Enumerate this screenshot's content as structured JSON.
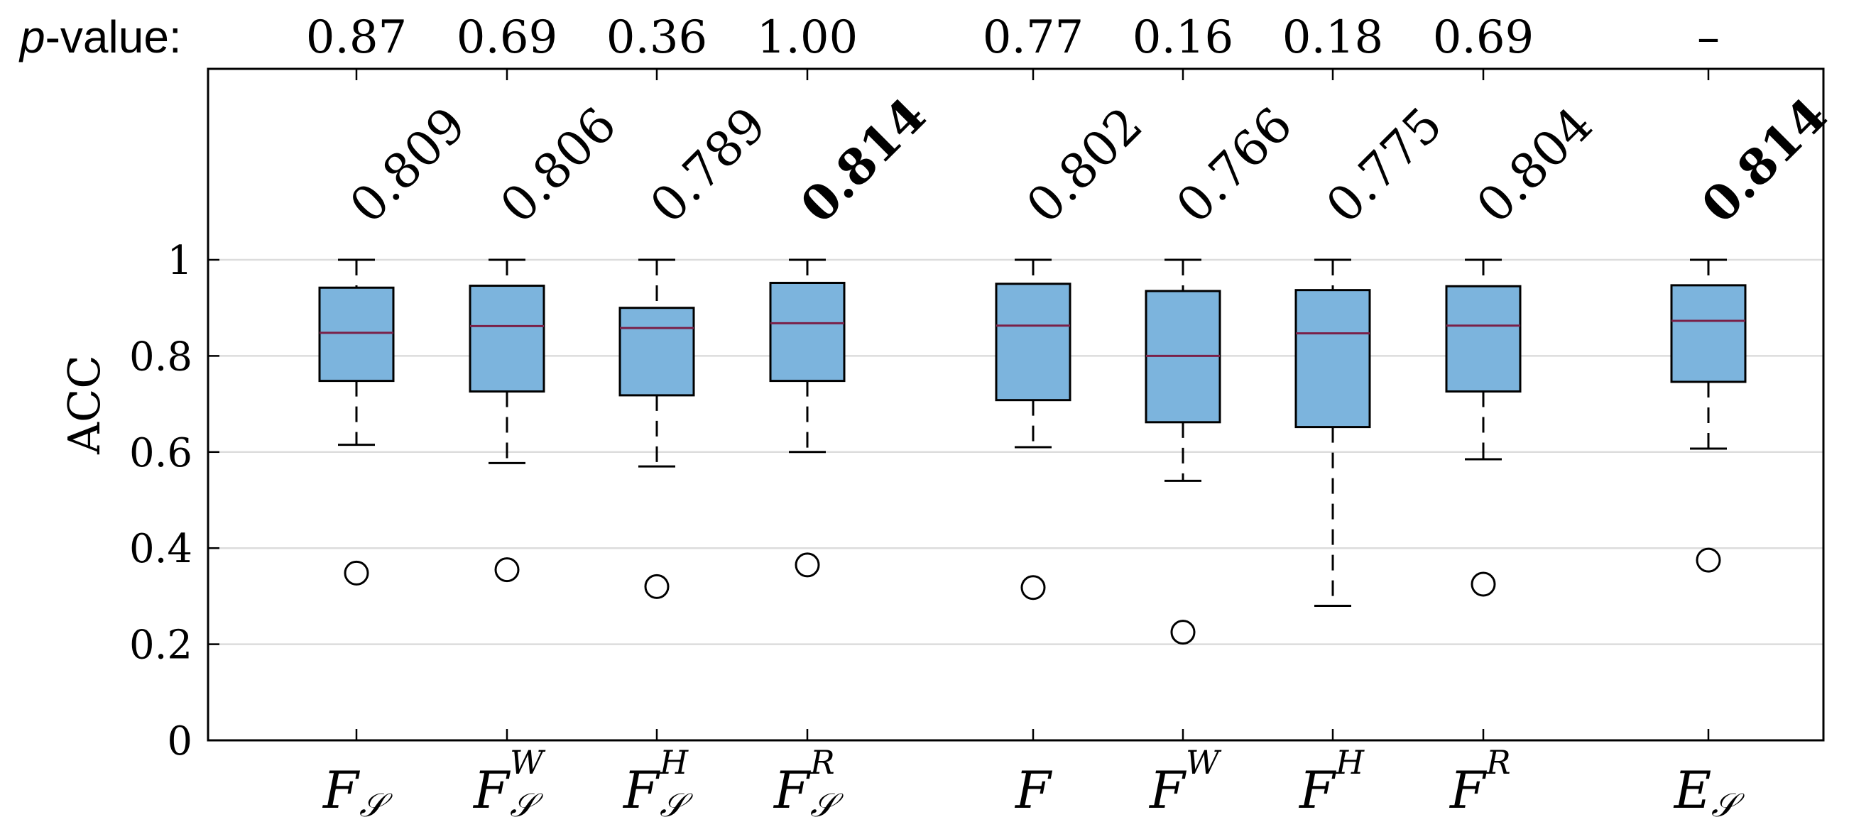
{
  "chart_data": {
    "type": "box",
    "ylabel": "ACC",
    "ylim": [
      0,
      1
    ],
    "yticks": [
      0,
      0.2,
      0.4,
      0.6,
      0.8,
      1
    ],
    "ytick_labels": [
      "0",
      "0.2",
      "0.4",
      "0.6",
      "0.8",
      "1"
    ],
    "grid": "horizontal",
    "pvalue_label": "p-value:",
    "pvalue_label_parts": {
      "italic": "p",
      "rest": "-value:"
    },
    "categories": [
      {
        "id": "FS",
        "base": "F",
        "sub": "𝒮",
        "sup": "",
        "accuracy": "0.809",
        "bold": false,
        "pvalue": "0.87",
        "box": {
          "whisker_low": 0.615,
          "q1": 0.748,
          "median": 0.848,
          "q3": 0.942,
          "whisker_high": 1.0
        },
        "outliers": [
          0.348
        ]
      },
      {
        "id": "FSW",
        "base": "F",
        "sub": "𝒮",
        "sup": "W",
        "accuracy": "0.806",
        "bold": false,
        "pvalue": "0.69",
        "box": {
          "whisker_low": 0.577,
          "q1": 0.726,
          "median": 0.862,
          "q3": 0.946,
          "whisker_high": 1.0
        },
        "outliers": [
          0.355
        ]
      },
      {
        "id": "FSH",
        "base": "F",
        "sub": "𝒮",
        "sup": "H",
        "accuracy": "0.789",
        "bold": false,
        "pvalue": "0.36",
        "box": {
          "whisker_low": 0.57,
          "q1": 0.718,
          "median": 0.858,
          "q3": 0.9,
          "whisker_high": 1.0
        },
        "outliers": [
          0.32
        ]
      },
      {
        "id": "FSR",
        "base": "F",
        "sub": "𝒮",
        "sup": "R",
        "accuracy": "0.814",
        "bold": true,
        "pvalue": "1.00",
        "box": {
          "whisker_low": 0.6,
          "q1": 0.748,
          "median": 0.868,
          "q3": 0.952,
          "whisker_high": 1.0
        },
        "outliers": [
          0.365
        ]
      },
      {
        "id": "F",
        "base": "F",
        "sub": "",
        "sup": "",
        "accuracy": "0.802",
        "bold": false,
        "pvalue": "0.77",
        "box": {
          "whisker_low": 0.61,
          "q1": 0.708,
          "median": 0.863,
          "q3": 0.95,
          "whisker_high": 1.0
        },
        "outliers": [
          0.318
        ]
      },
      {
        "id": "FW",
        "base": "F",
        "sub": "",
        "sup": "W",
        "accuracy": "0.766",
        "bold": false,
        "pvalue": "0.16",
        "box": {
          "whisker_low": 0.54,
          "q1": 0.662,
          "median": 0.8,
          "q3": 0.935,
          "whisker_high": 1.0
        },
        "outliers": [
          0.225
        ]
      },
      {
        "id": "FH",
        "base": "F",
        "sub": "",
        "sup": "H",
        "accuracy": "0.775",
        "bold": false,
        "pvalue": "0.18",
        "box": {
          "whisker_low": 0.28,
          "q1": 0.652,
          "median": 0.847,
          "q3": 0.937,
          "whisker_high": 1.0
        },
        "outliers": []
      },
      {
        "id": "FR",
        "base": "F",
        "sub": "",
        "sup": "R",
        "accuracy": "0.804",
        "bold": false,
        "pvalue": "0.69",
        "box": {
          "whisker_low": 0.585,
          "q1": 0.726,
          "median": 0.863,
          "q3": 0.945,
          "whisker_high": 1.0
        },
        "outliers": [
          0.325
        ]
      },
      {
        "id": "ES",
        "base": "E",
        "sub": "𝒮",
        "sup": "",
        "accuracy": "0.814",
        "bold": true,
        "pvalue": "–",
        "box": {
          "whisker_low": 0.607,
          "q1": 0.746,
          "median": 0.873,
          "q3": 0.947,
          "whisker_high": 1.0
        },
        "outliers": [
          0.375
        ]
      }
    ],
    "colors": {
      "box_fill": "#7cb4dd",
      "box_edge": "#000000",
      "median": "#7a2048",
      "grid": "#dcdcdc",
      "text": "#000000"
    }
  }
}
